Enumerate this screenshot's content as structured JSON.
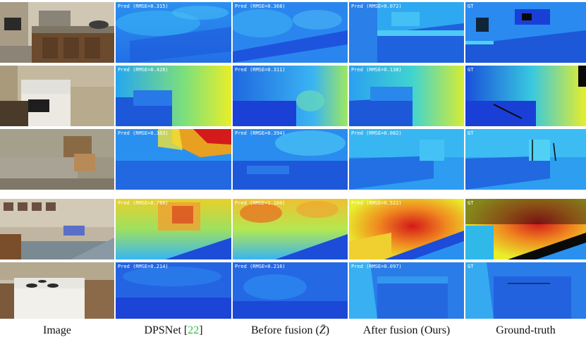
{
  "columns": [
    {
      "id": "image",
      "caption": "Image"
    },
    {
      "id": "dpsnet",
      "caption": "DPSNet [22]",
      "caption_main": "DPSNet [",
      "caption_ref": "22",
      "caption_end": "]"
    },
    {
      "id": "before",
      "caption": "Before fusion (Z̄)",
      "caption_main": "Before fusion (",
      "caption_sym": "Z̄",
      "caption_end": ")"
    },
    {
      "id": "after",
      "caption": "After fusion (Ours)"
    },
    {
      "id": "gt",
      "caption": "Ground-truth"
    }
  ],
  "rows": [
    {
      "dpsnet": "Pred (RMSE=0.315)",
      "before": "Pred (RMSE=0.368)",
      "after": "Pred (RMSE=0.072)",
      "gt": "GT"
    },
    {
      "dpsnet": "Pred (RMSE=0.428)",
      "before": "Pred (RMSE=0.311)",
      "after": "Pred (RMSE=0.138)",
      "gt": "GT"
    },
    {
      "dpsnet": "Pred (RMSE=0.383)",
      "before": "Pred (RMSE=0.394)",
      "after": "Pred (RMSE=0.082)",
      "gt": "GT"
    },
    {
      "dpsnet": "Pred (RMSE=0.780)",
      "before": "Pred (RMSE=1.160)",
      "after": "Pred (RMSE=0.522)",
      "gt": "GT"
    },
    {
      "dpsnet": "Pred (RMSE=0.214)",
      "before": "Pred (RMSE=0.216)",
      "after": "Pred (RMSE=0.097)",
      "gt": "GT"
    }
  ],
  "colors": {
    "depth_far": "#1a3fd6",
    "depth_mid": "#25a6f0",
    "depth_near": "#e8ee2a",
    "depth_closest": "#d41a1a",
    "photo_wall": "#b9ad97",
    "photo_cabinet": "#6b4a2e",
    "caption_ref": "#2fbf3f"
  }
}
